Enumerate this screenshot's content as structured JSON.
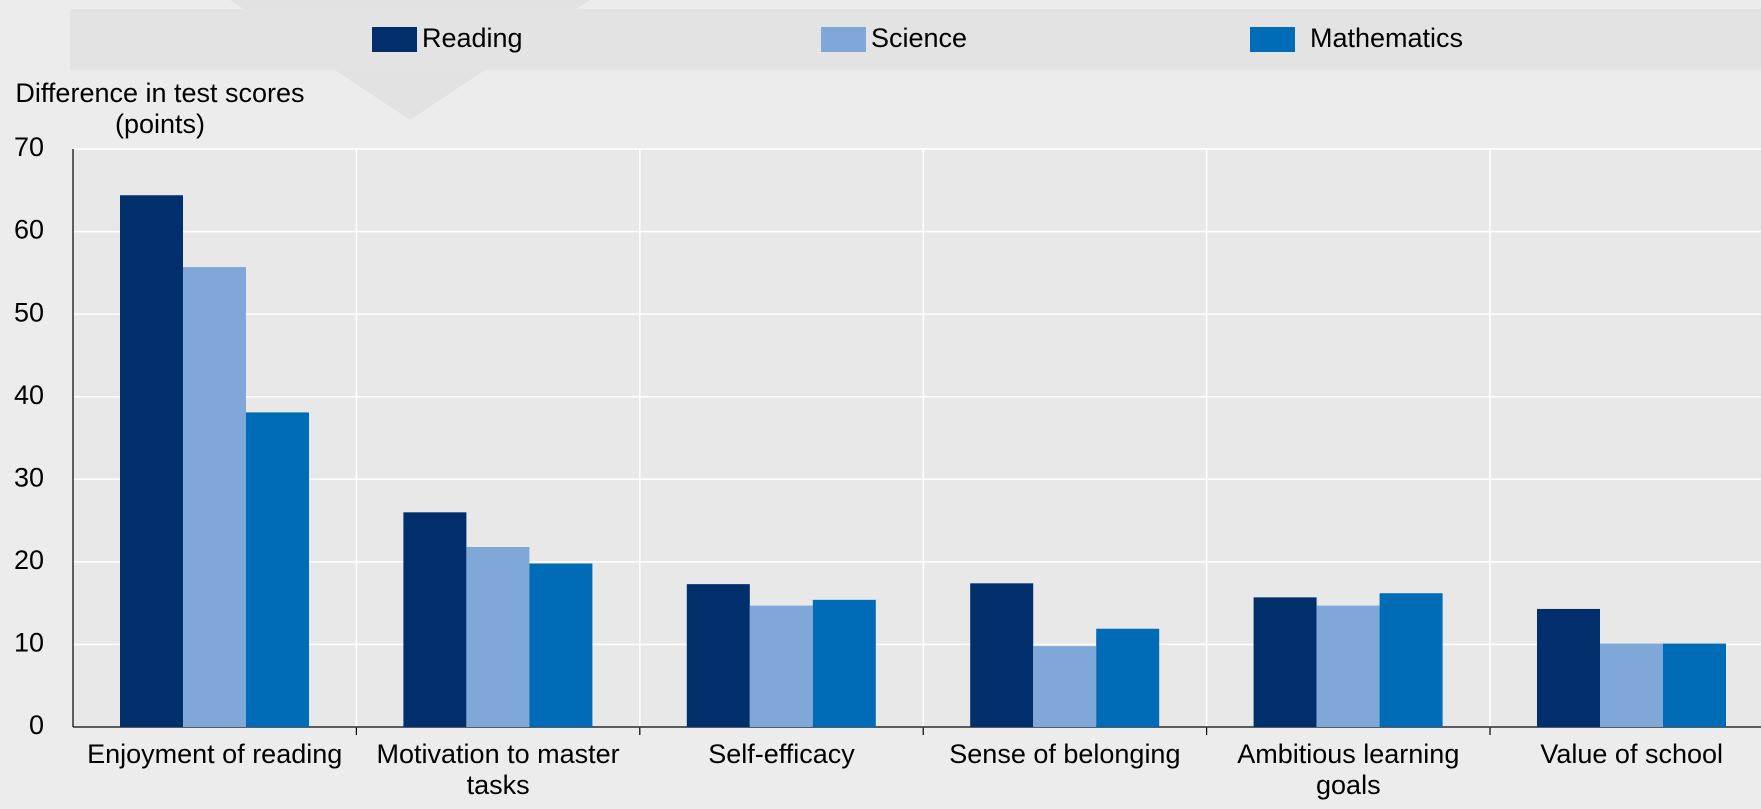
{
  "chart_data": {
    "type": "bar",
    "y_label": "Difference in test scores (points)",
    "categories": [
      "Enjoyment of reading",
      "Motivation to master tasks",
      "Self-efficacy",
      "Sense of belonging",
      "Ambitious learning goals",
      "Value of school"
    ],
    "series": [
      {
        "name": "Reading",
        "color": "#002f6c",
        "values": [
          64.4,
          26.0,
          17.3,
          17.4,
          15.7,
          14.3
        ]
      },
      {
        "name": "Science",
        "color": "#7fa8d9",
        "values": [
          55.7,
          21.8,
          14.7,
          9.8,
          14.7,
          10.1
        ]
      },
      {
        "name": "Mathematics",
        "color": "#006bb6",
        "values": [
          38.1,
          19.8,
          15.4,
          11.9,
          16.2,
          10.1
        ]
      }
    ],
    "ylim": [
      0,
      70
    ],
    "yticks": [
      0,
      10,
      20,
      30,
      40,
      50,
      60,
      70
    ],
    "grid": true,
    "legend": "top"
  }
}
